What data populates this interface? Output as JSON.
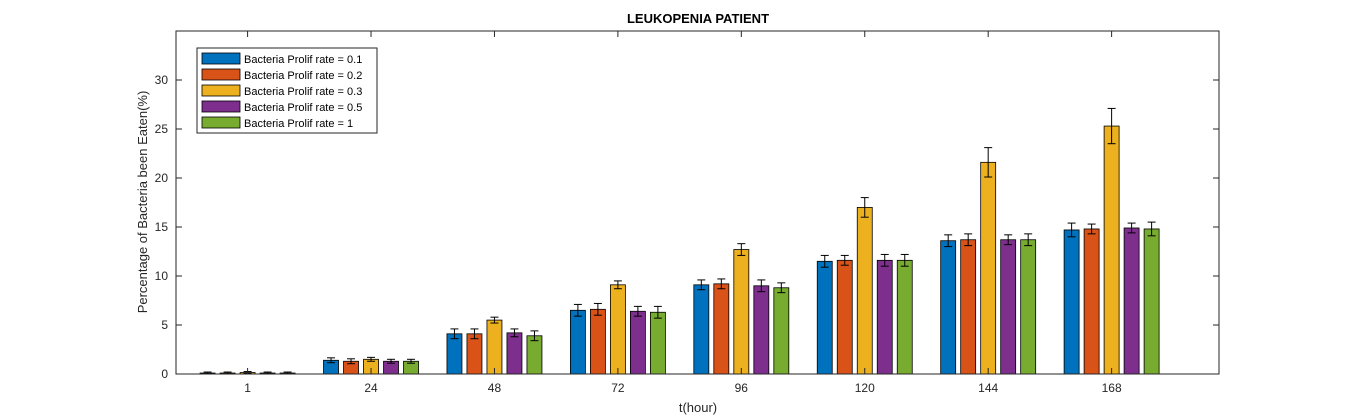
{
  "chart_data": {
    "type": "bar",
    "title": "LEUKOPENIA PATIENT",
    "xlabel": "t(hour)",
    "ylabel": "Percentage of Bacteria been Eaten(%)",
    "categories": [
      "1",
      "24",
      "48",
      "72",
      "96",
      "120",
      "144",
      "168"
    ],
    "ylim": [
      0,
      35
    ],
    "yticks": [
      0,
      5,
      10,
      15,
      20,
      25,
      30
    ],
    "grid": false,
    "legend_position": "top-left",
    "error_bars": true,
    "series": [
      {
        "name": "Bacteria Prolif rate = 0.1",
        "color": "#0072BD",
        "values": [
          0.1,
          1.4,
          4.1,
          6.5,
          9.1,
          11.5,
          13.6,
          14.7
        ],
        "errors": [
          0.1,
          0.25,
          0.5,
          0.6,
          0.5,
          0.6,
          0.6,
          0.7
        ]
      },
      {
        "name": "Bacteria Prolif rate = 0.2",
        "color": "#D95319",
        "values": [
          0.1,
          1.3,
          4.1,
          6.6,
          9.2,
          11.6,
          13.7,
          14.8
        ],
        "errors": [
          0.1,
          0.25,
          0.5,
          0.6,
          0.5,
          0.5,
          0.6,
          0.5
        ]
      },
      {
        "name": "Bacteria Prolif rate = 0.3",
        "color": "#EDB120",
        "values": [
          0.15,
          1.5,
          5.5,
          9.1,
          12.7,
          17.0,
          21.6,
          25.3
        ],
        "errors": [
          0.1,
          0.2,
          0.3,
          0.4,
          0.6,
          1.0,
          1.5,
          1.8
        ]
      },
      {
        "name": "Bacteria Prolif rate = 0.5",
        "color": "#7E2F8E",
        "values": [
          0.1,
          1.3,
          4.2,
          6.4,
          9.0,
          11.6,
          13.7,
          14.9
        ],
        "errors": [
          0.1,
          0.2,
          0.4,
          0.5,
          0.6,
          0.6,
          0.5,
          0.5
        ]
      },
      {
        "name": "Bacteria Prolif rate = 1",
        "color": "#77AC30",
        "values": [
          0.1,
          1.3,
          3.9,
          6.3,
          8.8,
          11.6,
          13.7,
          14.8
        ],
        "errors": [
          0.1,
          0.2,
          0.5,
          0.6,
          0.5,
          0.6,
          0.6,
          0.7
        ]
      }
    ]
  }
}
